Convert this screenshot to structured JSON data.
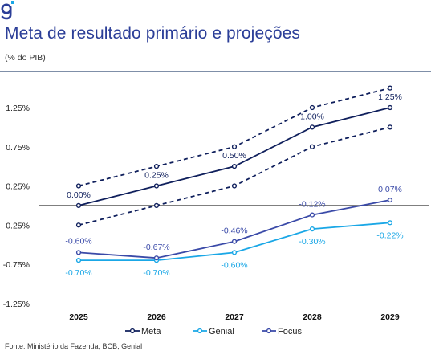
{
  "title": "Meta de resultado primário e projeções",
  "subtitle": "(% do PIB)",
  "source": "Fonte: Ministério da Fazenda, BCB, Genial",
  "colors": {
    "meta": "#0f1f5c",
    "genial": "#1aa7e6",
    "focus": "#3a4aa8",
    "brand": "#2b3e98"
  },
  "icons": {
    "logo": "genial-logo-icon"
  },
  "chart_data": {
    "type": "line",
    "categories": [
      "2025",
      "2026",
      "2027",
      "2028",
      "2029"
    ],
    "ylim": [
      -1.25,
      1.5
    ],
    "yticks": [
      "1.25%",
      "0.75%",
      "0.25%",
      "-0.25%",
      "-0.75%",
      "-1.25%"
    ],
    "ytick_values": [
      1.25,
      0.75,
      0.25,
      -0.25,
      -0.75,
      -1.25
    ],
    "zero_line": true,
    "legend_position": "bottom",
    "series": [
      {
        "name": "Meta",
        "key": "meta",
        "values": [
          0.0,
          0.25,
          0.5,
          1.0,
          1.25
        ],
        "labels": [
          "0.00%",
          "0.25%",
          "0.50%",
          "1.00%",
          "1.25%"
        ]
      },
      {
        "name": "Genial",
        "key": "genial",
        "values": [
          -0.7,
          -0.7,
          -0.6,
          -0.3,
          -0.22
        ],
        "labels": [
          "-0.70%",
          "-0.70%",
          "-0.60%",
          "-0.30%",
          "-0.22%"
        ]
      },
      {
        "name": "Focus",
        "key": "focus",
        "values": [
          -0.6,
          -0.67,
          -0.46,
          -0.12,
          0.07
        ],
        "labels": [
          "-0.60%",
          "-0.67%",
          "-0.46%",
          "-0.12%",
          "0.07%"
        ]
      }
    ],
    "bands": [
      {
        "of": "meta",
        "upper": [
          0.25,
          0.5,
          0.75,
          1.25,
          1.5
        ],
        "lower": [
          -0.25,
          0.0,
          0.25,
          0.75,
          1.0
        ]
      }
    ]
  }
}
